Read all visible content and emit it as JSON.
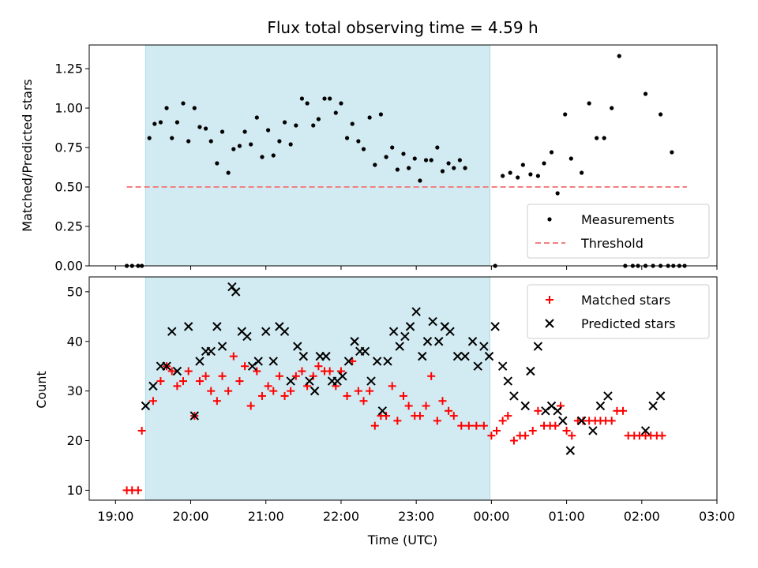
{
  "chart_data": [
    {
      "type": "scatter",
      "title": "Flux total observing time = 4.59 h",
      "ylabel": "Matched/Predicted stars",
      "xlabel": "",
      "x_unit": "hours since 19:00 UTC",
      "xlim": [
        -0.35,
        8.0
      ],
      "ylim": [
        0.0,
        1.4
      ],
      "yticks": [
        "0.00",
        "0.25",
        "0.50",
        "0.75",
        "1.00",
        "1.25"
      ],
      "yticks_values": [
        0.0,
        0.25,
        0.5,
        0.75,
        1.0,
        1.25
      ],
      "shaded_interval": [
        0.4,
        4.98
      ],
      "shade_color": "#add8e6",
      "threshold": {
        "name": "Threshold",
        "value": 0.5,
        "x_range": [
          0.15,
          7.6
        ],
        "color": "#f08080"
      },
      "legend": {
        "placement": "lower-right",
        "entries": [
          "Measurements",
          "Threshold"
        ]
      },
      "series": [
        {
          "name": "Measurements",
          "color": "#000000",
          "points": [
            [
              0.15,
              0.0
            ],
            [
              0.22,
              0.0
            ],
            [
              0.3,
              0.0
            ],
            [
              0.35,
              0.0
            ],
            [
              0.45,
              0.81
            ],
            [
              0.52,
              0.9
            ],
            [
              0.6,
              0.91
            ],
            [
              0.68,
              1.0
            ],
            [
              0.75,
              0.81
            ],
            [
              0.82,
              0.91
            ],
            [
              0.9,
              1.03
            ],
            [
              0.97,
              0.79
            ],
            [
              1.05,
              1.0
            ],
            [
              1.12,
              0.88
            ],
            [
              1.2,
              0.87
            ],
            [
              1.27,
              0.79
            ],
            [
              1.35,
              0.65
            ],
            [
              1.42,
              0.85
            ],
            [
              1.5,
              0.59
            ],
            [
              1.57,
              0.74
            ],
            [
              1.65,
              0.76
            ],
            [
              1.72,
              0.85
            ],
            [
              1.8,
              0.77
            ],
            [
              1.88,
              0.94
            ],
            [
              1.95,
              0.69
            ],
            [
              2.03,
              0.86
            ],
            [
              2.1,
              0.7
            ],
            [
              2.18,
              0.79
            ],
            [
              2.25,
              0.91
            ],
            [
              2.33,
              0.77
            ],
            [
              2.4,
              0.89
            ],
            [
              2.48,
              1.06
            ],
            [
              2.55,
              1.03
            ],
            [
              2.63,
              0.89
            ],
            [
              2.7,
              0.93
            ],
            [
              2.78,
              1.06
            ],
            [
              2.85,
              1.06
            ],
            [
              2.93,
              0.97
            ],
            [
              3.0,
              1.03
            ],
            [
              3.08,
              0.81
            ],
            [
              3.15,
              0.9
            ],
            [
              3.23,
              0.79
            ],
            [
              3.3,
              0.74
            ],
            [
              3.38,
              0.94
            ],
            [
              3.45,
              0.64
            ],
            [
              3.53,
              0.96
            ],
            [
              3.6,
              0.69
            ],
            [
              3.68,
              0.75
            ],
            [
              3.75,
              0.61
            ],
            [
              3.83,
              0.71
            ],
            [
              3.9,
              0.62
            ],
            [
              3.98,
              0.68
            ],
            [
              4.05,
              0.54
            ],
            [
              4.13,
              0.67
            ],
            [
              4.2,
              0.67
            ],
            [
              4.28,
              0.75
            ],
            [
              4.35,
              0.6
            ],
            [
              4.43,
              0.65
            ],
            [
              4.5,
              0.62
            ],
            [
              4.58,
              0.67
            ],
            [
              4.65,
              0.62
            ],
            [
              5.05,
              0.0
            ],
            [
              5.15,
              0.57
            ],
            [
              5.25,
              0.59
            ],
            [
              5.35,
              0.56
            ],
            [
              5.42,
              0.64
            ],
            [
              5.52,
              0.58
            ],
            [
              5.62,
              0.57
            ],
            [
              5.7,
              0.65
            ],
            [
              5.8,
              0.72
            ],
            [
              5.88,
              0.46
            ],
            [
              5.98,
              0.96
            ],
            [
              6.06,
              0.68
            ],
            [
              6.2,
              0.59
            ],
            [
              6.3,
              1.03
            ],
            [
              6.4,
              0.81
            ],
            [
              6.5,
              0.81
            ],
            [
              6.6,
              1.0
            ],
            [
              6.7,
              1.33
            ],
            [
              6.78,
              0.0
            ],
            [
              6.88,
              0.0
            ],
            [
              6.95,
              0.0
            ],
            [
              7.05,
              0.0
            ],
            [
              7.15,
              0.0
            ],
            [
              7.25,
              0.0
            ],
            [
              7.35,
              0.0
            ],
            [
              7.42,
              0.0
            ],
            [
              7.5,
              0.0
            ],
            [
              7.57,
              0.0
            ],
            [
              7.05,
              1.09
            ],
            [
              7.25,
              0.96
            ],
            [
              7.4,
              0.72
            ]
          ]
        }
      ]
    },
    {
      "type": "scatter",
      "title": "",
      "ylabel": "Count",
      "xlabel": "Time (UTC)",
      "x_unit": "hours since 19:00 UTC",
      "xlim": [
        -0.35,
        8.0
      ],
      "ylim": [
        8,
        53
      ],
      "yticks": [
        "10",
        "20",
        "30",
        "40",
        "50"
      ],
      "yticks_values": [
        10,
        20,
        30,
        40,
        50
      ],
      "xticks": [
        "19:00",
        "20:00",
        "21:00",
        "22:00",
        "23:00",
        "00:00",
        "01:00",
        "02:00",
        "03:00"
      ],
      "xticks_values": [
        0,
        1,
        2,
        3,
        4,
        5,
        6,
        7,
        8
      ],
      "shaded_interval": [
        0.4,
        4.98
      ],
      "shade_color": "#add8e6",
      "legend": {
        "placement": "upper-right",
        "entries": [
          "Matched stars",
          "Predicted stars"
        ]
      },
      "series": [
        {
          "name": "Matched stars",
          "marker": "plus",
          "color": "#ff0000",
          "points": [
            [
              0.15,
              10
            ],
            [
              0.22,
              10
            ],
            [
              0.3,
              10
            ],
            [
              0.35,
              22
            ],
            [
              0.5,
              28
            ],
            [
              0.6,
              32
            ],
            [
              0.68,
              35
            ],
            [
              0.75,
              34
            ],
            [
              0.82,
              31
            ],
            [
              0.9,
              32
            ],
            [
              0.97,
              34
            ],
            [
              1.05,
              25
            ],
            [
              1.12,
              32
            ],
            [
              1.2,
              33
            ],
            [
              1.27,
              30
            ],
            [
              1.35,
              28
            ],
            [
              1.42,
              33
            ],
            [
              1.5,
              30
            ],
            [
              1.57,
              37
            ],
            [
              1.65,
              32
            ],
            [
              1.72,
              35
            ],
            [
              1.8,
              27
            ],
            [
              1.88,
              34
            ],
            [
              1.95,
              29
            ],
            [
              2.03,
              31
            ],
            [
              2.1,
              30
            ],
            [
              2.18,
              33
            ],
            [
              2.25,
              29
            ],
            [
              2.33,
              30
            ],
            [
              2.4,
              33
            ],
            [
              2.48,
              34
            ],
            [
              2.55,
              31
            ],
            [
              2.63,
              33
            ],
            [
              2.7,
              35
            ],
            [
              2.78,
              34
            ],
            [
              2.85,
              34
            ],
            [
              2.93,
              31
            ],
            [
              3.0,
              34
            ],
            [
              3.08,
              29
            ],
            [
              3.15,
              36
            ],
            [
              3.23,
              30
            ],
            [
              3.3,
              28
            ],
            [
              3.38,
              30
            ],
            [
              3.45,
              23
            ],
            [
              3.53,
              25
            ],
            [
              3.6,
              25
            ],
            [
              3.68,
              31
            ],
            [
              3.75,
              24
            ],
            [
              3.83,
              29
            ],
            [
              3.9,
              27
            ],
            [
              3.98,
              25
            ],
            [
              4.05,
              25
            ],
            [
              4.13,
              27
            ],
            [
              4.2,
              33
            ],
            [
              4.28,
              24
            ],
            [
              4.35,
              28
            ],
            [
              4.43,
              26
            ],
            [
              4.5,
              25
            ],
            [
              4.6,
              23
            ],
            [
              4.7,
              23
            ],
            [
              4.8,
              23
            ],
            [
              4.9,
              23
            ],
            [
              5.0,
              21
            ],
            [
              5.07,
              22
            ],
            [
              5.15,
              24
            ],
            [
              5.22,
              25
            ],
            [
              5.3,
              20
            ],
            [
              5.38,
              21
            ],
            [
              5.45,
              21
            ],
            [
              5.55,
              22
            ],
            [
              5.62,
              26
            ],
            [
              5.7,
              23
            ],
            [
              5.78,
              23
            ],
            [
              5.85,
              23
            ],
            [
              5.92,
              27
            ],
            [
              6.0,
              22
            ],
            [
              6.07,
              21
            ],
            [
              6.15,
              24
            ],
            [
              6.22,
              24
            ],
            [
              6.3,
              24
            ],
            [
              6.38,
              24
            ],
            [
              6.45,
              24
            ],
            [
              6.52,
              24
            ],
            [
              6.6,
              24
            ],
            [
              6.67,
              26
            ],
            [
              6.75,
              26
            ],
            [
              6.82,
              21
            ],
            [
              6.9,
              21
            ],
            [
              6.97,
              21
            ],
            [
              7.05,
              21
            ],
            [
              7.12,
              21
            ],
            [
              7.2,
              21
            ],
            [
              7.27,
              21
            ]
          ]
        },
        {
          "name": "Predicted stars",
          "marker": "x",
          "color": "#000000",
          "points": [
            [
              0.4,
              27
            ],
            [
              0.5,
              31
            ],
            [
              0.6,
              35
            ],
            [
              0.68,
              35
            ],
            [
              0.75,
              42
            ],
            [
              0.82,
              34
            ],
            [
              0.97,
              43
            ],
            [
              1.05,
              25
            ],
            [
              1.12,
              36
            ],
            [
              1.2,
              38
            ],
            [
              1.27,
              38
            ],
            [
              1.35,
              43
            ],
            [
              1.42,
              39
            ],
            [
              1.55,
              51
            ],
            [
              1.6,
              50
            ],
            [
              1.68,
              42
            ],
            [
              1.75,
              41
            ],
            [
              1.82,
              35
            ],
            [
              1.9,
              36
            ],
            [
              2.0,
              42
            ],
            [
              2.1,
              36
            ],
            [
              2.18,
              43
            ],
            [
              2.25,
              42
            ],
            [
              2.33,
              32
            ],
            [
              2.42,
              39
            ],
            [
              2.5,
              37
            ],
            [
              2.58,
              32
            ],
            [
              2.65,
              30
            ],
            [
              2.72,
              37
            ],
            [
              2.8,
              37
            ],
            [
              2.88,
              32
            ],
            [
              2.95,
              32
            ],
            [
              3.02,
              33
            ],
            [
              3.1,
              36
            ],
            [
              3.18,
              40
            ],
            [
              3.25,
              38
            ],
            [
              3.32,
              38
            ],
            [
              3.4,
              32
            ],
            [
              3.48,
              36
            ],
            [
              3.55,
              26
            ],
            [
              3.62,
              36
            ],
            [
              3.7,
              42
            ],
            [
              3.78,
              39
            ],
            [
              3.85,
              41
            ],
            [
              3.92,
              43
            ],
            [
              4.0,
              46
            ],
            [
              4.08,
              37
            ],
            [
              4.15,
              40
            ],
            [
              4.22,
              44
            ],
            [
              4.3,
              40
            ],
            [
              4.38,
              43
            ],
            [
              4.45,
              42
            ],
            [
              4.55,
              37
            ],
            [
              4.65,
              37
            ],
            [
              4.75,
              40
            ],
            [
              4.82,
              35
            ],
            [
              4.9,
              39
            ],
            [
              4.97,
              37
            ],
            [
              5.05,
              43
            ],
            [
              5.15,
              35
            ],
            [
              5.22,
              32
            ],
            [
              5.3,
              29
            ],
            [
              5.45,
              27
            ],
            [
              5.52,
              34
            ],
            [
              5.62,
              39
            ],
            [
              5.72,
              26
            ],
            [
              5.8,
              27
            ],
            [
              5.88,
              26
            ],
            [
              5.95,
              24
            ],
            [
              6.05,
              18
            ],
            [
              6.2,
              24
            ],
            [
              6.35,
              22
            ],
            [
              6.45,
              27
            ],
            [
              6.55,
              29
            ],
            [
              7.05,
              22
            ],
            [
              7.15,
              27
            ],
            [
              7.25,
              29
            ]
          ]
        }
      ]
    }
  ]
}
